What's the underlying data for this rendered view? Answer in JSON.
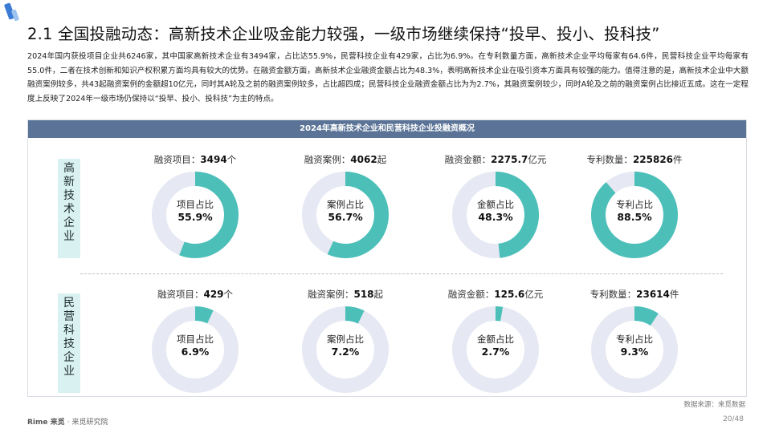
{
  "title": "2.1 全国投融动态：高新技术企业吸金能力较强，一级市场继续保持“投早、投小、投科技”",
  "intro": "2024年国内获投项目企业共6246家，其中国家高新技术企业有3494家，占比达55.9%，民营科技企业有429家，占比为6.9%。在专利数量方面，高新技术企业平均每家有64.6件，民营科技企业平均每家有55.0件，二者在技术创新和知识产权积累方面均具有较大的优势。在融资金额方面，高新技术企业融资金额占比为48.3%，表明高新技术企业在吸引资本方面具有较强的能力。值得注意的是，高新技术企业中大额融资案例较多，共43起融资案例的金额超10亿元，同时其A轮及之前的融资案例较多，占比超四成；民营科技企业融资金额占比为为2.7%，其融资案例较少，同时A轮及之前的融资案例占比接近五成。这在一定程度上反映了2024年一级市场仍保持以“投早、投小、投科技”为主的特点。",
  "panel_title": "2024年高新技术企业和民营科技企业投融资概况",
  "colors": {
    "accent": "#4bbfb8",
    "track": "#e6e8f3",
    "header": "#5a7396",
    "label_bg": "#d9f2f1"
  },
  "groups": [
    {
      "label_chars": [
        "高",
        "新",
        "技",
        "术",
        "企",
        "业"
      ],
      "metrics": [
        {
          "label": "融资项目：",
          "value": "3494",
          "unit": "个",
          "inner_label": "项目占比",
          "inner_value": "55.9%",
          "fraction": 0.559
        },
        {
          "label": "融资案例：",
          "value": "4062",
          "unit": "起",
          "inner_label": "案例占比",
          "inner_value": "56.7%",
          "fraction": 0.567
        },
        {
          "label": "融资金额：",
          "value": "2275.7",
          "unit": "亿元",
          "inner_label": "金额占比",
          "inner_value": "48.3%",
          "fraction": 0.483
        },
        {
          "label": "专利数量：",
          "value": "225826",
          "unit": "件",
          "inner_label": "专利占比",
          "inner_value": "88.5%",
          "fraction": 0.885
        }
      ]
    },
    {
      "label_chars": [
        "民",
        "营",
        "科",
        "技",
        "企",
        "业"
      ],
      "metrics": [
        {
          "label": "融资项目：",
          "value": "429",
          "unit": "个",
          "inner_label": "项目占比",
          "inner_value": "6.9%",
          "fraction": 0.069
        },
        {
          "label": "融资案例：",
          "value": "518",
          "unit": "起",
          "inner_label": "案例占比",
          "inner_value": "7.2%",
          "fraction": 0.072
        },
        {
          "label": "融资金额：",
          "value": "125.6",
          "unit": "亿元",
          "inner_label": "金额占比",
          "inner_value": "2.7%",
          "fraction": 0.027
        },
        {
          "label": "专利数量：",
          "value": "23614",
          "unit": "件",
          "inner_label": "专利占比",
          "inner_value": "9.3%",
          "fraction": 0.093
        }
      ]
    }
  ],
  "source": "数据来源：来觅数据",
  "footer": {
    "brand": "Rime 来觅",
    "sub": "· 来觅研究院"
  },
  "page_number": "20/48"
}
